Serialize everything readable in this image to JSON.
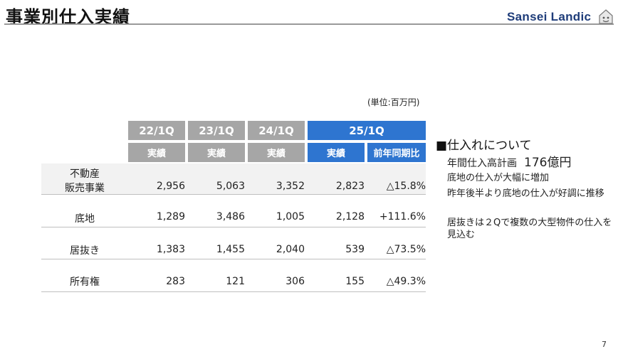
{
  "page": {
    "title": "事業別仕入実績",
    "logo_text": "Sansei Landic",
    "unit": "(単位:百万円)",
    "page_number": "7"
  },
  "table": {
    "periods": [
      "22/1Q",
      "23/1Q",
      "24/1Q",
      "25/1Q"
    ],
    "sub_headers": [
      "実績",
      "実績",
      "実績",
      "実績",
      "前年同期比"
    ],
    "rows": [
      {
        "label_line1": "不動産",
        "label_line2": "販売事業",
        "values": [
          "2,956",
          "5,063",
          "3,352",
          "2,823"
        ],
        "yoy": "△15.8%",
        "yoy_negative": true
      },
      {
        "label_line1": "底地",
        "label_line2": "",
        "values": [
          "1,289",
          "3,486",
          "1,005",
          "2,128"
        ],
        "yoy": "+111.6%",
        "yoy_negative": false
      },
      {
        "label_line1": "居抜き",
        "label_line2": "",
        "values": [
          "1,383",
          "1,455",
          "2,040",
          "539"
        ],
        "yoy": "△73.5%",
        "yoy_negative": true
      },
      {
        "label_line1": "所有権",
        "label_line2": "",
        "values": [
          "283",
          "121",
          "306",
          "155"
        ],
        "yoy": "△49.3%",
        "yoy_negative": true
      }
    ]
  },
  "notes": {
    "heading": "■仕入れについて",
    "plan_label": "年間仕入高計画",
    "plan_value": "176億円",
    "items": [
      "底地の仕入が大幅に増加",
      "昨年後半より底地の仕入が好調に推移",
      "居抜きは２Qで複数の大型物件の仕入を見込む"
    ]
  },
  "colors": {
    "header_gray": "#a6a6a6",
    "header_blue": "#2e75d0",
    "negative_red": "#e0201f"
  }
}
